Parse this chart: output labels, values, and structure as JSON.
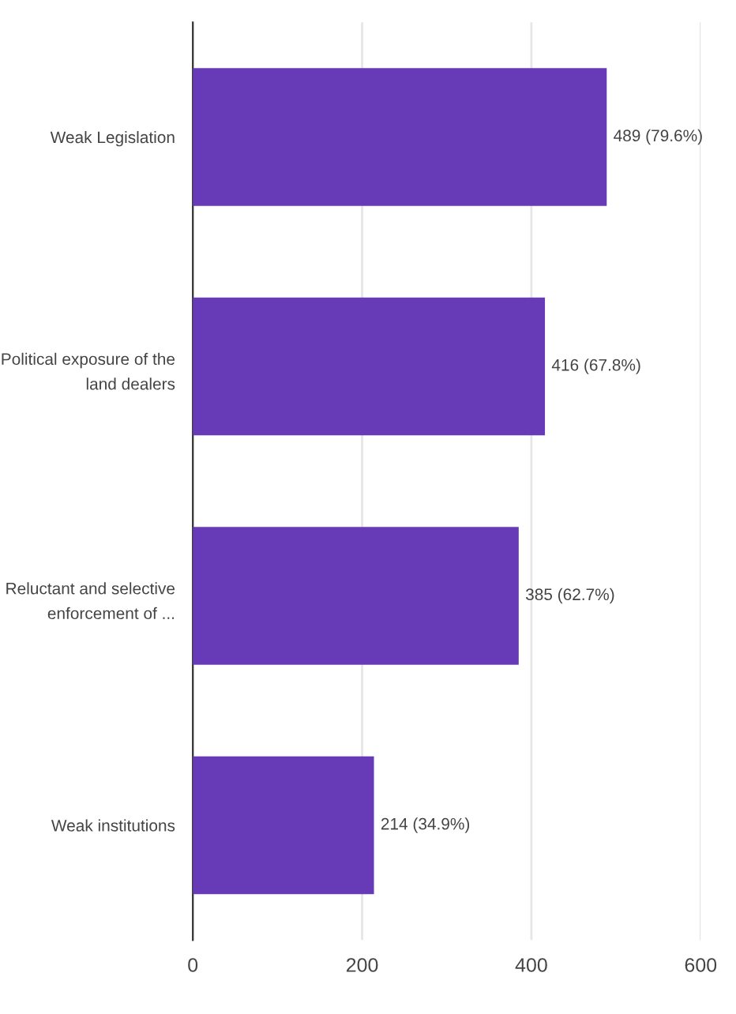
{
  "chart_data": {
    "type": "bar",
    "orientation": "horizontal",
    "categories": [
      "Weak Legislation",
      "Political exposure of the\nland dealers",
      "Reluctant and selective\nenforcement of ...",
      "Weak institutions"
    ],
    "values": [
      489,
      416,
      385,
      214
    ],
    "value_labels": [
      "489 (79.6%)",
      "416 (67.8%)",
      "385 (62.7%)",
      "214 (34.9%)"
    ],
    "color": "#673ab7",
    "xlim": [
      0,
      600
    ],
    "xticks": [
      0,
      200,
      400,
      600
    ],
    "grid": "x"
  }
}
